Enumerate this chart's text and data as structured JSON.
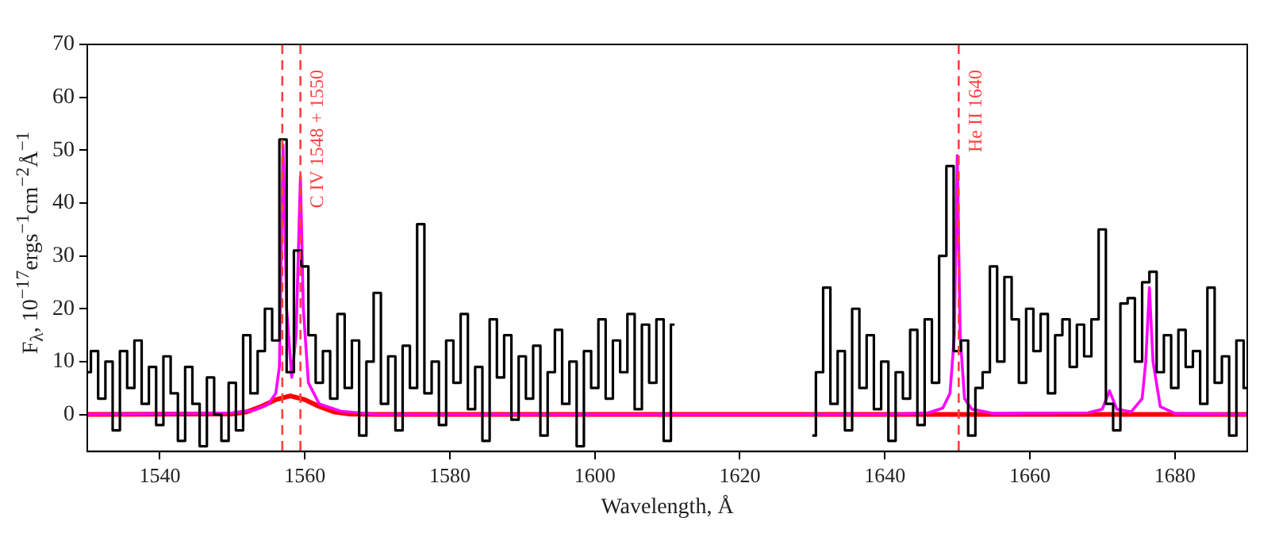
{
  "chart_data": {
    "type": "line",
    "xlabel": "Wavelength, Å",
    "ylabel": "F$_{λ}$, 10$^{−17}$ergs$^{−1}$cm$^{−2}$Å$^{−1}$",
    "xlim": [
      1530,
      1690
    ],
    "xticks": [
      1540,
      1560,
      1580,
      1600,
      1620,
      1640,
      1660,
      1680
    ],
    "ylim": [
      -7,
      70
    ],
    "yticks": [
      0,
      10,
      20,
      30,
      40,
      50,
      60,
      70
    ],
    "grid": false,
    "legend": false,
    "marker": "none",
    "series": [
      {
        "type": "step",
        "color": "#000000",
        "x": [
          1530,
          1531,
          1532,
          1533,
          1534,
          1535,
          1536,
          1537,
          1538,
          1539,
          1540,
          1541,
          1542,
          1543,
          1544,
          1545,
          1546,
          1547,
          1548,
          1549,
          1550,
          1551,
          1552,
          1553,
          1554,
          1555,
          1556,
          1557,
          1558,
          1559,
          1560,
          1561,
          1562,
          1563,
          1564,
          1565,
          1566,
          1567,
          1568,
          1569,
          1570,
          1571,
          1572,
          1573,
          1574,
          1575,
          1576,
          1577,
          1578,
          1579,
          1580,
          1581,
          1582,
          1583,
          1584,
          1585,
          1586,
          1587,
          1588,
          1589,
          1590,
          1591,
          1592,
          1593,
          1594,
          1595,
          1596,
          1597,
          1598,
          1599,
          1600,
          1601,
          1602,
          1603,
          1604,
          1605,
          1606,
          1607,
          1608,
          1609,
          1610,
          1611,
          1612,
          1630,
          1631,
          1632,
          1633,
          1634,
          1635,
          1636,
          1637,
          1638,
          1639,
          1640,
          1641,
          1642,
          1643,
          1644,
          1645,
          1646,
          1647,
          1648,
          1649,
          1650,
          1651,
          1652,
          1653,
          1654,
          1655,
          1656,
          1657,
          1658,
          1659,
          1660,
          1661,
          1662,
          1663,
          1664,
          1665,
          1666,
          1667,
          1668,
          1669,
          1670,
          1671,
          1672,
          1673,
          1674,
          1675,
          1676,
          1677,
          1678,
          1679,
          1680,
          1681,
          1682,
          1683,
          1684,
          1685,
          1686,
          1687,
          1688,
          1689,
          1690
        ],
        "values": [
          8,
          12,
          3,
          10,
          -3,
          12,
          5,
          14,
          2,
          9,
          -2,
          11,
          4,
          -5,
          9,
          2,
          -6,
          7,
          0,
          -5,
          6,
          -3,
          15,
          4,
          12,
          20,
          14,
          52,
          8,
          31,
          28,
          15,
          6,
          12,
          3,
          19,
          5,
          14,
          -4,
          10,
          23,
          2,
          11,
          -3,
          13,
          5,
          36,
          4,
          10,
          -2,
          14,
          6,
          19,
          1,
          9,
          -5,
          18,
          7,
          15,
          -1,
          11,
          3,
          13,
          -4,
          8,
          16,
          2,
          10,
          -6,
          12,
          5,
          18,
          3,
          14,
          8,
          19,
          1,
          17,
          6,
          18,
          -5,
          17,
          null,
          -4,
          8,
          24,
          2,
          12,
          -3,
          20,
          5,
          15,
          1,
          10,
          -5,
          8,
          3,
          16,
          -2,
          18,
          6,
          30,
          47,
          12,
          14,
          -4,
          5,
          8,
          28,
          10,
          26,
          18,
          6,
          20,
          12,
          19,
          4,
          15,
          18,
          9,
          17,
          11,
          18,
          35,
          2,
          -3,
          21,
          22,
          10,
          25,
          27,
          8,
          15,
          5,
          16,
          9,
          12,
          2,
          24,
          6,
          11,
          -4,
          14,
          5
        ]
      },
      {
        "type": "line",
        "color": "#ff00ff",
        "x": [
          1530,
          1550,
          1553,
          1555,
          1556,
          1556.5,
          1557,
          1557.5,
          1558.2,
          1558.8,
          1559.2,
          1559.4,
          1559.8,
          1560.5,
          1562,
          1565,
          1570,
          1640,
          1646,
          1648,
          1649,
          1649.6,
          1650,
          1650.4,
          1651,
          1652,
          1655,
          1668,
          1670,
          1671,
          1672,
          1674,
          1675.5,
          1676,
          1676.5,
          1677,
          1678,
          1680,
          1690
        ],
        "values": [
          0,
          0.3,
          0.8,
          2,
          4,
          9,
          51,
          20,
          7,
          15,
          35,
          45,
          20,
          6,
          2,
          0.6,
          0,
          0,
          0.3,
          1.2,
          4,
          15,
          49,
          15,
          3,
          1,
          0.2,
          0.3,
          1,
          4.5,
          1,
          0.5,
          3,
          10,
          24,
          10,
          1.5,
          0.2,
          0
        ]
      },
      {
        "type": "line",
        "color": "#ff0000",
        "x": [
          1530,
          1550,
          1552,
          1554,
          1556,
          1558,
          1560,
          1562,
          1564,
          1566,
          1570,
          1690
        ],
        "values": [
          0,
          0.1,
          0.5,
          1.5,
          2.8,
          3.5,
          2.8,
          1.5,
          0.5,
          0.1,
          0,
          0
        ]
      }
    ],
    "ref_lines": [
      {
        "axis": "x",
        "value": 1556.9,
        "color": "#ff4040",
        "line_style": "dashed"
      },
      {
        "axis": "x",
        "value": 1559.4,
        "label": "C IV 1548 + 1550",
        "color": "#ff4040",
        "line_style": "dashed"
      },
      {
        "axis": "x",
        "value": 1650.2,
        "label": "He II 1640",
        "color": "#ff4040",
        "line_style": "dashed"
      }
    ]
  }
}
